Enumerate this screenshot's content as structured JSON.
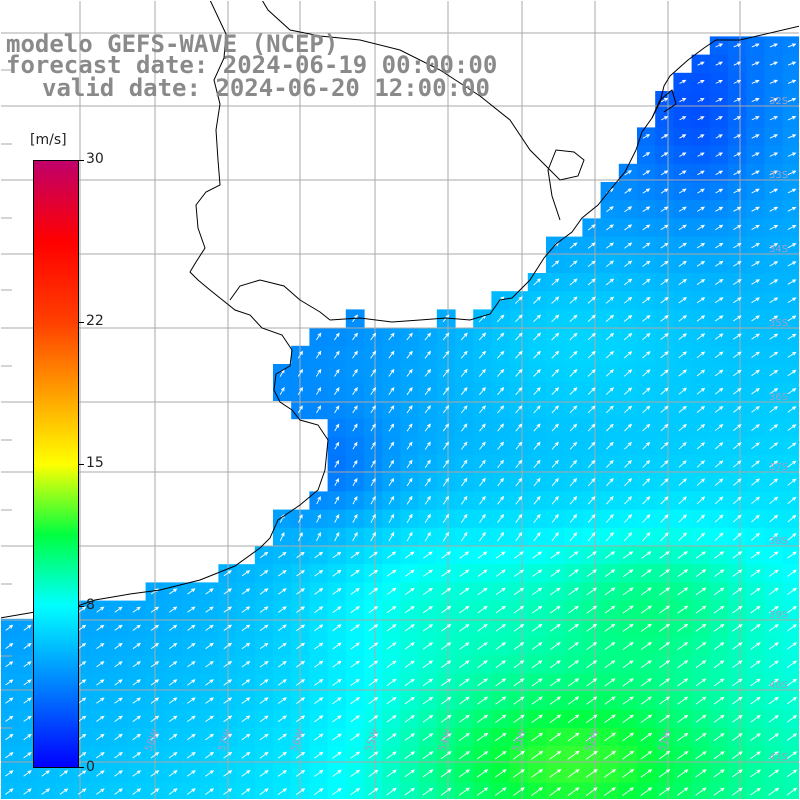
{
  "header": {
    "model_line": "modelo GEFS-WAVE (NCEP)",
    "forecast_line": "forecast date: 2024-06-19 00:00:00",
    "valid_line": "valid date: 2024-06-20 12:00:00"
  },
  "colorbar": {
    "unit": "[m/s]",
    "min": 0,
    "max": 30,
    "ticks": [
      {
        "value": 30,
        "label": "30"
      },
      {
        "value": 22,
        "label": "22"
      },
      {
        "value": 15,
        "label": "15"
      },
      {
        "value": 8,
        "label": "8"
      },
      {
        "value": 0,
        "label": "0"
      }
    ],
    "stops": [
      {
        "value": 0,
        "color": "#0000ff"
      },
      {
        "value": 4,
        "color": "#0080ff"
      },
      {
        "value": 8,
        "color": "#00ffff"
      },
      {
        "value": 11.5,
        "color": "#00ff40"
      },
      {
        "value": 15,
        "color": "#ffff00"
      },
      {
        "value": 22,
        "color": "#ff4000"
      },
      {
        "value": 26,
        "color": "#ff0000"
      },
      {
        "value": 30,
        "color": "#c0006a"
      }
    ]
  },
  "map": {
    "region": "Rio de la Plata and southern Brazil coast",
    "lon_range": [
      -60,
      -50
    ],
    "lat_range": [
      -41.5,
      -31
    ],
    "grid_lines": true,
    "land_color": "#ffffff",
    "grid_color": "#aaaaaa",
    "coast_color": "#000000",
    "arrow_color": "#ffffff",
    "lon_labels": [
      "58W",
      "57W",
      "56W",
      "55W",
      "54W",
      "53W",
      "52W",
      "51W"
    ],
    "lat_labels": [
      "32S",
      "33S",
      "34S",
      "35S",
      "36S",
      "37S",
      "38S",
      "39S",
      "40S",
      "41S"
    ],
    "wind_field_description": "wind speed shaded, arrows show direction toward north-east"
  }
}
